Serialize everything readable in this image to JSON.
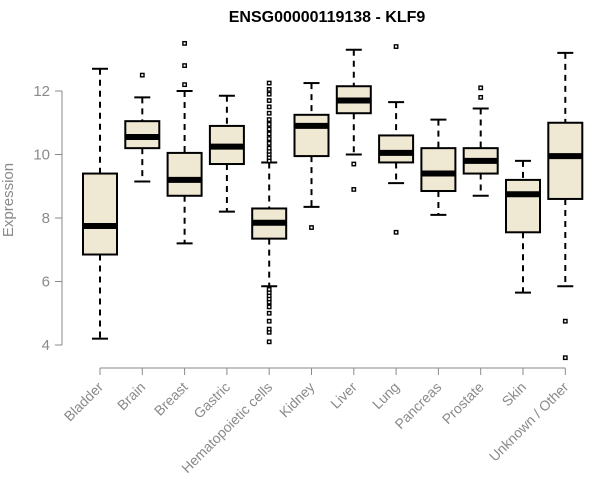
{
  "chart_data": {
    "type": "boxplot",
    "title": "ENSG00000119138 - KLF9",
    "xlabel": "",
    "ylabel": "Expression",
    "ylim": [
      3.4,
      13.9
    ],
    "yticks": [
      4,
      6,
      8,
      10,
      12
    ],
    "box_fill": "#efe8d2",
    "line_color": "#000000",
    "axis_color": "#8a8a8a",
    "categories": [
      "Bladder",
      "Brain",
      "Breast",
      "Gastric",
      "Hematopoietic cells",
      "Kidney",
      "Liver",
      "Lung",
      "Pancreas",
      "Prostate",
      "Skin",
      "Unknown / Other"
    ],
    "boxes": [
      {
        "name": "Bladder",
        "whisker_low": 4.2,
        "q1": 6.85,
        "median": 7.75,
        "q3": 9.4,
        "whisker_high": 12.7,
        "outliers": []
      },
      {
        "name": "Brain",
        "whisker_low": 9.15,
        "q1": 10.2,
        "median": 10.55,
        "q3": 11.05,
        "whisker_high": 11.8,
        "outliers": [
          12.5
        ]
      },
      {
        "name": "Breast",
        "whisker_low": 7.2,
        "q1": 8.7,
        "median": 9.2,
        "q3": 10.05,
        "whisker_high": 12.0,
        "outliers": [
          12.2,
          12.8,
          13.5
        ]
      },
      {
        "name": "Gastric",
        "whisker_low": 8.2,
        "q1": 9.7,
        "median": 10.25,
        "q3": 10.9,
        "whisker_high": 11.85,
        "outliers": []
      },
      {
        "name": "Hematopoietic cells",
        "whisker_low": 5.85,
        "q1": 7.35,
        "median": 7.85,
        "q3": 8.3,
        "whisker_high": 9.75,
        "outliers": [
          4.1,
          4.4,
          4.5,
          4.75,
          5.0,
          5.2,
          5.35,
          5.45,
          5.55,
          5.65,
          5.75,
          9.8,
          9.9,
          10.0,
          10.1,
          10.2,
          10.35,
          10.5,
          10.65,
          10.8,
          10.95,
          11.1,
          11.3,
          11.5,
          11.7,
          11.9,
          12.05,
          12.25
        ]
      },
      {
        "name": "Kidney",
        "whisker_low": 8.35,
        "q1": 9.95,
        "median": 10.9,
        "q3": 11.25,
        "whisker_high": 12.25,
        "outliers": [
          7.7
        ]
      },
      {
        "name": "Liver",
        "whisker_low": 10.0,
        "q1": 11.3,
        "median": 11.7,
        "q3": 12.15,
        "whisker_high": 13.3,
        "outliers": [
          8.9,
          9.7
        ]
      },
      {
        "name": "Lung",
        "whisker_low": 9.1,
        "q1": 9.75,
        "median": 10.05,
        "q3": 10.6,
        "whisker_high": 11.65,
        "outliers": [
          7.55,
          13.4
        ]
      },
      {
        "name": "Pancreas",
        "whisker_low": 8.1,
        "q1": 8.85,
        "median": 9.4,
        "q3": 10.2,
        "whisker_high": 11.1,
        "outliers": []
      },
      {
        "name": "Prostate",
        "whisker_low": 8.7,
        "q1": 9.4,
        "median": 9.8,
        "q3": 10.2,
        "whisker_high": 11.45,
        "outliers": [
          11.8,
          12.1
        ]
      },
      {
        "name": "Skin",
        "whisker_low": 5.65,
        "q1": 7.55,
        "median": 8.75,
        "q3": 9.2,
        "whisker_high": 9.8,
        "outliers": []
      },
      {
        "name": "Unknown / Other",
        "whisker_low": 5.85,
        "q1": 8.6,
        "median": 9.95,
        "q3": 11.0,
        "whisker_high": 13.2,
        "outliers": [
          3.6,
          4.75
        ]
      }
    ]
  }
}
